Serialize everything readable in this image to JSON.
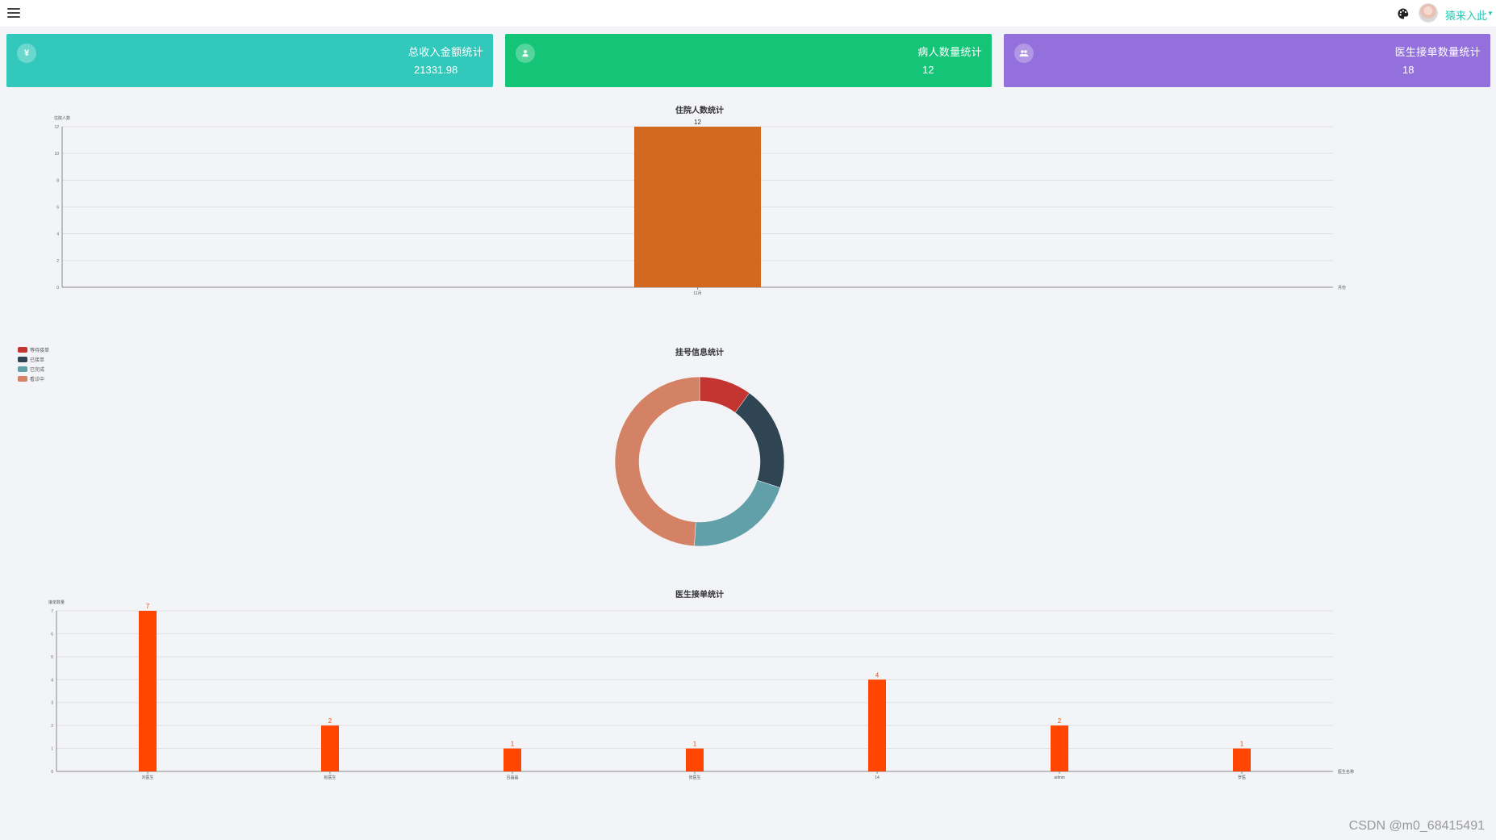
{
  "topbar": {
    "user_name": "猿来入此"
  },
  "cards": [
    {
      "icon": "¥",
      "title": "总收入金额统计",
      "value": "21331.98",
      "color": "#32c9bc"
    },
    {
      "icon": "person",
      "title": "病人数量统计",
      "value": "12",
      "color": "#14c477"
    },
    {
      "icon": "group",
      "title": "医生接单数量统计",
      "value": "18",
      "color": "#9370db"
    }
  ],
  "chart_data": [
    {
      "type": "bar",
      "title": "住院人数统计",
      "ylabel": "住院人数",
      "xlabel": "月份",
      "categories": [
        "11月"
      ],
      "values": [
        12
      ],
      "ylim": [
        0,
        12
      ],
      "yticks": [
        0,
        2,
        4,
        6,
        8,
        10,
        12
      ],
      "color": "#d2691e",
      "grid": true
    },
    {
      "type": "pie",
      "title": "挂号信息统计",
      "legend_position": "top-left",
      "series": [
        {
          "name": "等待接单",
          "value": 10,
          "color": "#c23531"
        },
        {
          "name": "已接单",
          "value": 20,
          "color": "#2f4554"
        },
        {
          "name": "已完成",
          "value": 21,
          "color": "#61a0a8"
        },
        {
          "name": "看诊中",
          "value": 49,
          "color": "#d48265"
        }
      ]
    },
    {
      "type": "bar",
      "title": "医生接单统计",
      "ylabel": "接单数量",
      "xlabel": "医生名称",
      "categories": [
        "刘医生",
        "赵医生",
        "吕晶晶",
        "张医生",
        "14",
        "admin",
        "罗医"
      ],
      "values": [
        7,
        2,
        1,
        1,
        4,
        2,
        1
      ],
      "ylim": [
        0,
        7
      ],
      "yticks": [
        0,
        1,
        2,
        3,
        4,
        5,
        6,
        7
      ],
      "color": "#ff4500",
      "grid": true
    }
  ],
  "watermark": "CSDN @m0_68415491"
}
